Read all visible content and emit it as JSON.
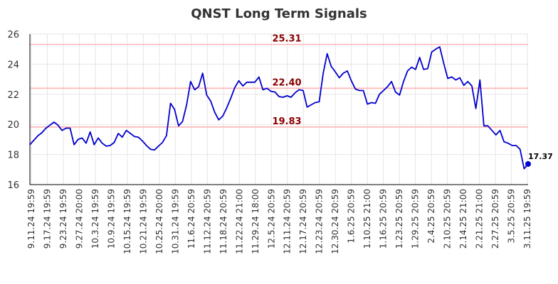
{
  "chart_data": {
    "type": "line",
    "title": "QNST Long Term Signals",
    "xlabel": "",
    "ylabel": "",
    "ylim": [
      16,
      26
    ],
    "yticks": [
      16,
      18,
      20,
      22,
      24,
      26
    ],
    "grid": true,
    "x_tick_labels": [
      "9.11.24 19:59",
      "9.17.24 19:59",
      "9.23.24 19:59",
      "9.27.24 20:00",
      "10.3.24 19:59",
      "10.9.24 19:59",
      "10.15.24 19:59",
      "10.21.24 19:59",
      "10.25.24 20:00",
      "10.31.24 19:59",
      "11.6.24 20:59",
      "11.12.24 20:59",
      "11.18.24 20:59",
      "11.22.24 21:00",
      "11.29.24 18:00",
      "12.5.24 20:59",
      "12.11.24 20:59",
      "12.17.24 20:59",
      "12.23.24 20:59",
      "12.30.24 20:59",
      "1.6.25 20:59",
      "1.10.25 21:00",
      "1.16.25 20:59",
      "1.23.25 20:59",
      "1.29.25 20:59",
      "2.4.25 20:59",
      "2.10.25 20:59",
      "2.14.25 21:00",
      "2.21.25 21:00",
      "2.27.25 20:59",
      "3.5.25 20:59",
      "3.11.25 19:59"
    ],
    "levels": [
      {
        "value": 25.31,
        "label": "25.31"
      },
      {
        "value": 22.4,
        "label": "22.40"
      },
      {
        "value": 19.83,
        "label": "19.83"
      }
    ],
    "last_label": "17.37",
    "series": [
      {
        "color": "#0000cc",
        "values": [
          18.65,
          18.95,
          19.25,
          19.45,
          19.75,
          19.95,
          20.15,
          19.95,
          19.6,
          19.75,
          19.75,
          18.65,
          19.0,
          19.1,
          18.75,
          19.5,
          18.65,
          19.1,
          18.75,
          18.55,
          18.6,
          18.8,
          19.4,
          19.15,
          19.6,
          19.4,
          19.2,
          19.15,
          18.9,
          18.6,
          18.35,
          18.3,
          18.55,
          18.8,
          19.25,
          21.4,
          21.0,
          19.9,
          20.2,
          21.3,
          22.85,
          22.3,
          22.5,
          23.4,
          21.95,
          21.55,
          20.8,
          20.3,
          20.55,
          21.1,
          21.75,
          22.45,
          22.9,
          22.55,
          22.8,
          22.8,
          22.8,
          23.15,
          22.3,
          22.4,
          22.2,
          22.15,
          21.85,
          21.8,
          21.9,
          21.8,
          22.1,
          22.3,
          22.25,
          21.15,
          21.3,
          21.45,
          21.5,
          23.4,
          24.7,
          23.85,
          23.5,
          23.1,
          23.4,
          23.55,
          22.9,
          22.35,
          22.25,
          22.25,
          21.35,
          21.45,
          21.4,
          22.0,
          22.25,
          22.5,
          22.85,
          22.15,
          21.95,
          22.85,
          23.55,
          23.8,
          23.65,
          24.45,
          23.65,
          23.7,
          24.8,
          25.0,
          25.15,
          24.05,
          23.05,
          23.15,
          22.95,
          23.1,
          22.6,
          22.85,
          22.55,
          21.05,
          22.95,
          19.9,
          19.9,
          19.6,
          19.3,
          19.6,
          18.85,
          18.75,
          18.6,
          18.6,
          18.35,
          17.05,
          17.37
        ]
      }
    ]
  }
}
